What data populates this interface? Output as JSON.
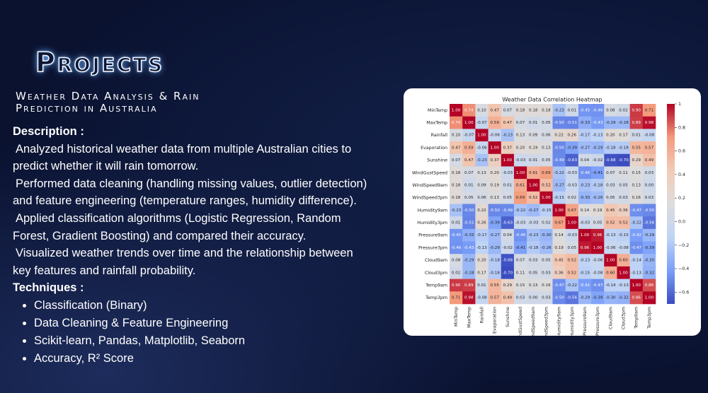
{
  "header": {
    "title": "Projects"
  },
  "project": {
    "title_lines": [
      "Weather Data Analysis & Rain",
      "Prediction in Australia"
    ],
    "description_label": "Description :",
    "description": [
      [
        "Analyzed historical weather data from multiple Australian cities to",
        "predict whether it will rain tomorrow."
      ],
      [
        "Performed data cleaning (handling missing values, outlier detection)",
        "and feature engineering (temperature ranges, humidity difference)."
      ],
      [
        "Applied classification algorithms (Logistic Regression, Random",
        "Forest, Gradient Boosting) and compared their accuracy."
      ],
      [
        "Visualized weather trends over time and the relationship between",
        "key features and rainfall probability."
      ]
    ],
    "techniques_label": "Techniques :",
    "techniques": [
      "Classification (Binary)",
      "Data Cleaning & Feature Engineering",
      "Scikit-learn, Pandas, Matplotlib, Seaborn",
      "Accuracy, R² Score"
    ]
  },
  "chart_data": {
    "type": "heatmap",
    "title": "Weather Data Correlation Heatmap",
    "categories": [
      "MinTemp",
      "MaxTemp",
      "Rainfall",
      "Evaporation",
      "Sunshine",
      "WindGustSpeed",
      "WindSpeed9am",
      "WindSpeed3pm",
      "Humidity9am",
      "Humidity3pm",
      "Pressure9am",
      "Pressure3pm",
      "Cloud9am",
      "Cloud3pm",
      "Temp9am",
      "Temp3pm"
    ],
    "values": [
      [
        1.0,
        0.74,
        0.1,
        0.47,
        0.07,
        0.18,
        0.18,
        0.18,
        -0.23,
        0.01,
        -0.45,
        -0.46,
        0.08,
        0.02,
        0.9,
        0.71
      ],
      [
        0.74,
        1.0,
        -0.07,
        0.59,
        0.47,
        0.07,
        0.01,
        0.05,
        -0.5,
        -0.51,
        -0.33,
        -0.43,
        -0.29,
        -0.28,
        0.89,
        0.98
      ],
      [
        0.1,
        -0.07,
        1.0,
        -0.06,
        -0.23,
        0.13,
        0.09,
        0.06,
        0.22,
        0.26,
        -0.17,
        -0.13,
        0.2,
        0.17,
        0.01,
        -0.08
      ],
      [
        0.47,
        0.59,
        -0.06,
        1.0,
        0.37,
        0.2,
        0.19,
        0.13,
        -0.5,
        -0.39,
        -0.27,
        -0.29,
        -0.18,
        -0.18,
        0.55,
        0.57
      ],
      [
        0.07,
        0.47,
        -0.23,
        0.37,
        1.0,
        -0.03,
        0.01,
        0.05,
        -0.49,
        -0.63,
        0.04,
        -0.02,
        -0.68,
        -0.7,
        0.29,
        0.49
      ],
      [
        0.18,
        0.07,
        0.13,
        0.2,
        -0.03,
        1.0,
        0.61,
        0.69,
        -0.22,
        -0.03,
        -0.46,
        -0.41,
        0.07,
        0.11,
        0.15,
        0.03
      ],
      [
        0.18,
        0.01,
        0.09,
        0.19,
        0.01,
        0.61,
        1.0,
        0.52,
        -0.27,
        -0.03,
        -0.23,
        -0.18,
        0.03,
        0.05,
        0.13,
        0.0
      ],
      [
        0.18,
        0.05,
        0.06,
        0.13,
        0.05,
        0.69,
        0.52,
        1.0,
        -0.15,
        0.02,
        -0.3,
        -0.26,
        0.05,
        0.03,
        0.16,
        0.03
      ],
      [
        -0.23,
        -0.5,
        0.22,
        -0.5,
        -0.49,
        -0.22,
        -0.27,
        -0.15,
        1.0,
        0.67,
        0.14,
        0.19,
        0.45,
        0.36,
        -0.47,
        -0.5
      ],
      [
        0.01,
        -0.51,
        0.26,
        -0.39,
        -0.63,
        -0.03,
        -0.03,
        0.02,
        0.67,
        1.0,
        -0.03,
        0.05,
        0.52,
        0.52,
        -0.22,
        -0.56
      ],
      [
        -0.45,
        -0.33,
        -0.17,
        -0.27,
        0.04,
        -0.46,
        -0.23,
        -0.3,
        0.14,
        -0.03,
        1.0,
        0.96,
        -0.13,
        -0.15,
        -0.42,
        -0.29
      ],
      [
        -0.46,
        -0.43,
        -0.13,
        -0.29,
        -0.02,
        -0.41,
        -0.18,
        -0.26,
        0.19,
        0.05,
        0.96,
        1.0,
        -0.06,
        -0.08,
        -0.47,
        -0.39
      ],
      [
        0.08,
        -0.29,
        0.2,
        -0.18,
        -0.68,
        0.07,
        0.03,
        0.05,
        0.45,
        0.52,
        -0.13,
        -0.06,
        1.0,
        0.6,
        -0.14,
        -0.3
      ],
      [
        0.02,
        -0.28,
        0.17,
        -0.18,
        -0.7,
        0.11,
        0.05,
        0.03,
        0.36,
        0.52,
        -0.15,
        -0.08,
        0.6,
        1.0,
        -0.13,
        -0.32
      ],
      [
        0.9,
        0.89,
        0.01,
        0.55,
        0.29,
        0.15,
        0.13,
        0.16,
        -0.47,
        -0.22,
        -0.42,
        -0.47,
        -0.14,
        -0.13,
        1.0,
        0.86
      ],
      [
        0.71,
        0.98,
        -0.08,
        0.57,
        0.49,
        0.03,
        0.0,
        0.03,
        -0.5,
        -0.56,
        -0.29,
        -0.39,
        -0.3,
        -0.32,
        0.86,
        1.0
      ]
    ],
    "value_labels": [
      [
        "1.00",
        "0.74",
        "0.10",
        "0.47",
        "0.07",
        "0.18",
        "0.18",
        "0.18",
        "-0.23",
        "0.01",
        "-0.45",
        "-0.46",
        "0.08",
        "0.02",
        "0.90",
        "0.71"
      ],
      [
        "0.74",
        "1.00",
        "-0.07",
        "0.59",
        "0.47",
        "0.07",
        "0.01",
        "0.05",
        "-0.50",
        "-0.51",
        "-0.33",
        "-0.43",
        "-0.29",
        "-0.28",
        "0.89",
        "0.98"
      ],
      [
        "0.10",
        "-0.07",
        "1.00",
        "-0.06",
        "-0.23",
        "0.13",
        "0.09",
        "0.06",
        "0.22",
        "0.26",
        "-0.17",
        "-0.13",
        "0.20",
        "0.17",
        "0.01",
        "-0.08"
      ],
      [
        "0.47",
        "0.59",
        "-0.06",
        "1.00",
        "0.37",
        "0.20",
        "0.19",
        "0.13",
        "-0.50",
        "-0.39",
        "-0.27",
        "-0.29",
        "-0.18",
        "-0.18",
        "0.55",
        "0.57"
      ],
      [
        "0.07",
        "0.47",
        "-0.23",
        "0.37",
        "1.00",
        "-0.03",
        "0.01",
        "0.05",
        "-0.49",
        "-0.63",
        "0.04",
        "-0.02",
        "-0.68",
        "-0.70",
        "0.29",
        "0.49"
      ],
      [
        "0.18",
        "0.07",
        "0.13",
        "0.20",
        "-0.03",
        "1.00",
        "0.61",
        "0.69",
        "-0.22",
        "-0.03",
        "-0.46",
        "-0.41",
        "0.07",
        "0.11",
        "0.15",
        "0.03"
      ],
      [
        "0.18",
        "0.01",
        "0.09",
        "0.19",
        "0.01",
        "0.61",
        "1.00",
        "0.52",
        "-0.27",
        "-0.03",
        "-0.23",
        "-0.18",
        "0.03",
        "0.05",
        "0.13",
        "0.00"
      ],
      [
        "0.18",
        "0.05",
        "0.06",
        "0.13",
        "0.05",
        "0.69",
        "0.52",
        "1.00",
        "-0.15",
        "0.02",
        "-0.30",
        "-0.26",
        "0.05",
        "0.03",
        "0.16",
        "0.03"
      ],
      [
        "-0.23",
        "-0.50",
        "0.22",
        "-0.50",
        "-0.49",
        "-0.22",
        "-0.27",
        "-0.15",
        "1.00",
        "0.67",
        "0.14",
        "0.19",
        "0.45",
        "0.36",
        "-0.47",
        "-0.50"
      ],
      [
        "0.01",
        "-0.51",
        "0.26",
        "-0.39",
        "-0.63",
        "-0.03",
        "-0.03",
        "0.02",
        "0.67",
        "1.00",
        "-0.03",
        "0.05",
        "0.52",
        "0.52",
        "-0.22",
        "-0.56"
      ],
      [
        "-0.45",
        "-0.33",
        "-0.17",
        "-0.27",
        "0.04",
        "-0.46",
        "-0.23",
        "-0.30",
        "0.14",
        "-0.03",
        "1.00",
        "0.96",
        "-0.13",
        "-0.15",
        "-0.42",
        "-0.29"
      ],
      [
        "-0.46",
        "-0.43",
        "-0.13",
        "-0.29",
        "-0.02",
        "-0.41",
        "-0.18",
        "-0.26",
        "0.19",
        "0.05",
        "0.96",
        "1.00",
        "-0.06",
        "-0.08",
        "-0.47",
        "-0.39"
      ],
      [
        "0.08",
        "-0.29",
        "0.20",
        "-0.18",
        "-0.68",
        "0.07",
        "0.03",
        "0.05",
        "0.45",
        "0.52",
        "-0.13",
        "-0.06",
        "1.00",
        "0.60",
        "-0.14",
        "-0.30"
      ],
      [
        "0.02",
        "-0.28",
        "0.17",
        "-0.18",
        "-0.70",
        "0.11",
        "0.05",
        "0.03",
        "0.36",
        "0.52",
        "-0.15",
        "-0.08",
        "0.60",
        "1.00",
        "-0.13",
        "-0.32"
      ],
      [
        "0.90",
        "0.89",
        "0.01",
        "0.55",
        "0.29",
        "0.15",
        "0.13",
        "0.16",
        "-0.47",
        "-0.22",
        "-0.42",
        "-0.47",
        "-0.14",
        "-0.13",
        "1.00",
        "0.86"
      ],
      [
        "0.71",
        "0.98",
        "-0.08",
        "0.57",
        "0.49",
        "0.03",
        "0.00",
        "0.03",
        "-0.50",
        "-0.56",
        "-0.29",
        "-0.39",
        "-0.30",
        "-0.32",
        "0.86",
        "1.00"
      ]
    ],
    "colormap": "coolwarm",
    "clim": [
      -0.7,
      1
    ],
    "cticks": [
      1,
      0.8,
      0.6,
      0.4,
      0.2,
      {
        "value": 0,
        "label": "0.0"
      },
      {
        "value": -0.2,
        "label": "−0.2"
      },
      {
        "value": -0.4,
        "label": "−0.4"
      },
      {
        "value": -0.6,
        "label": "−0.6"
      }
    ]
  }
}
